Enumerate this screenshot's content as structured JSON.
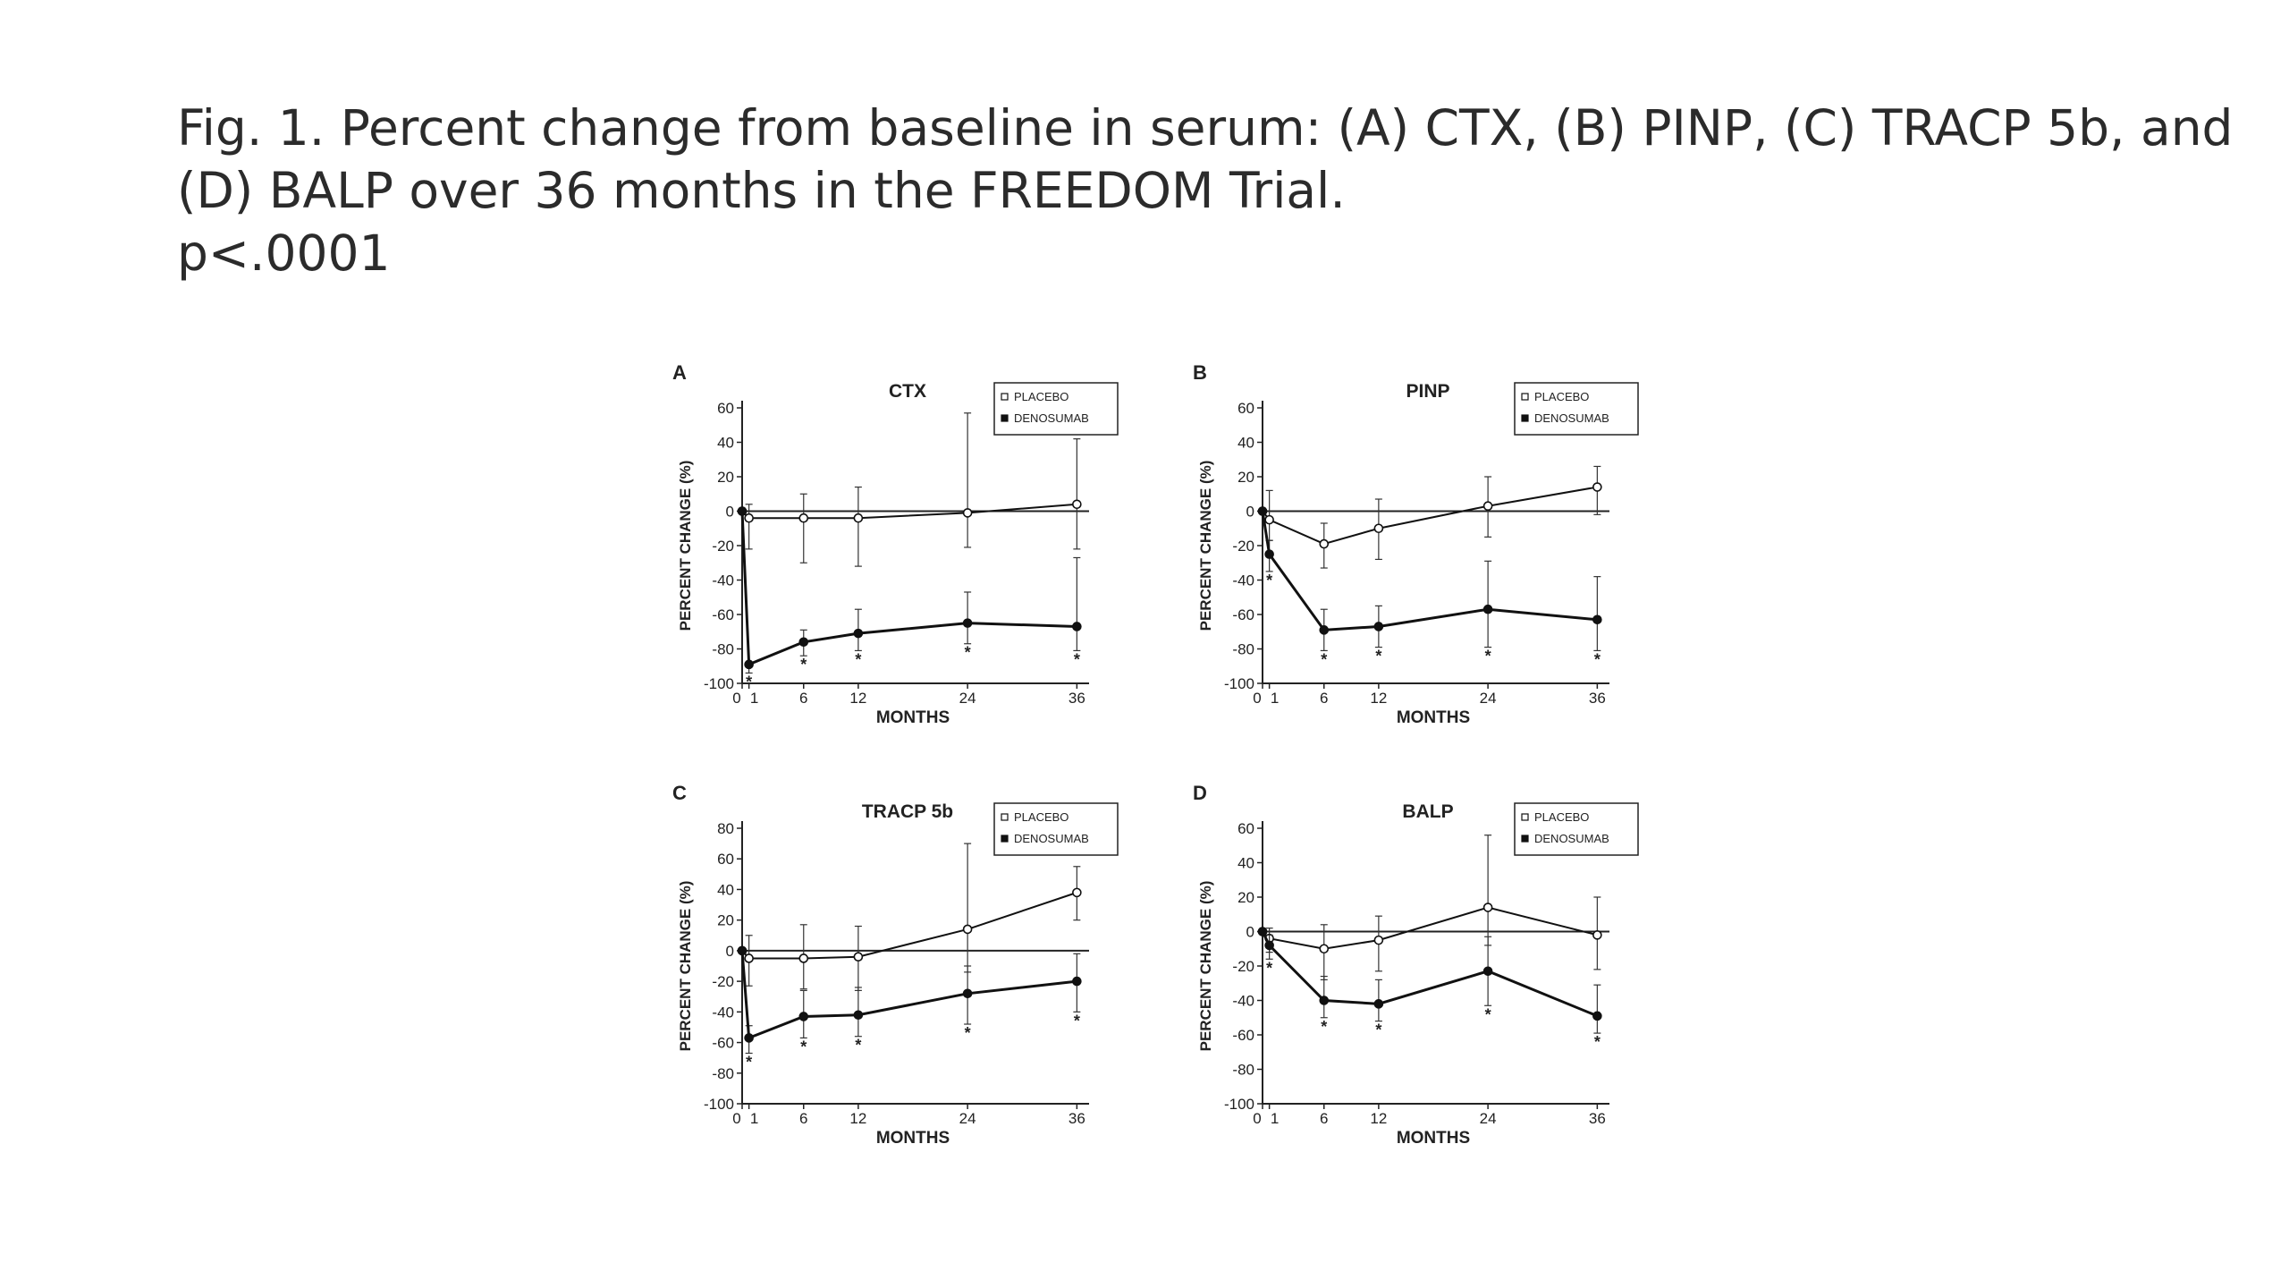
{
  "title": {
    "line1": "Fig. 1. Percent change from baseline in serum: (A) CTX, (B) PINP, (C) TRACP 5b, and",
    "line2": "(D) BALP over 36 months in the FREEDOM Trial.",
    "line3": "p<.0001"
  },
  "chart_data": [
    {
      "type": "line",
      "panel_letter": "A",
      "title": "CTX",
      "xlabel": "MONTHS",
      "ylabel": "PERCENT CHANGE (%)",
      "x_ticks": [
        "0",
        "1",
        "6",
        "12",
        "24",
        "36"
      ],
      "y_ticks": [
        60,
        40,
        20,
        0,
        -20,
        -40,
        -60,
        -80,
        -100
      ],
      "ylim": [
        -100,
        60
      ],
      "xlim": [
        0,
        36
      ],
      "legend": "top-right",
      "significance_marker": "*",
      "series": [
        {
          "name": "PLACEBO",
          "marker": "open-circle",
          "points": [
            {
              "x": 0,
              "y": 0
            },
            {
              "x": 1,
              "y": -4
            },
            {
              "x": 6,
              "y": -4
            },
            {
              "x": 12,
              "y": -4
            },
            {
              "x": 24,
              "y": -1
            },
            {
              "x": 36,
              "y": 4
            }
          ],
          "error_upper": [
            0,
            8,
            14,
            18,
            58,
            38
          ],
          "error_lower": [
            0,
            18,
            26,
            28,
            20,
            26
          ]
        },
        {
          "name": "DENOSUMAB",
          "marker": "filled-circle",
          "points": [
            {
              "x": 0,
              "y": 0
            },
            {
              "x": 1,
              "y": -89
            },
            {
              "x": 6,
              "y": -76
            },
            {
              "x": 12,
              "y": -71
            },
            {
              "x": 24,
              "y": -65
            },
            {
              "x": 36,
              "y": -67
            }
          ],
          "error_upper": [
            0,
            0,
            7,
            14,
            18,
            40
          ],
          "error_lower": [
            0,
            5,
            8,
            10,
            12,
            14
          ]
        }
      ],
      "significant_x": [
        1,
        6,
        12,
        24,
        36
      ]
    },
    {
      "type": "line",
      "panel_letter": "B",
      "title": "PINP",
      "xlabel": "MONTHS",
      "ylabel": "PERCENT CHANGE (%)",
      "x_ticks": [
        "0",
        "1",
        "6",
        "12",
        "24",
        "36"
      ],
      "y_ticks": [
        60,
        40,
        20,
        0,
        -20,
        -40,
        -60,
        -80,
        -100
      ],
      "ylim": [
        -100,
        60
      ],
      "xlim": [
        0,
        36
      ],
      "legend": "top-right",
      "significance_marker": "*",
      "series": [
        {
          "name": "PLACEBO",
          "marker": "open-circle",
          "points": [
            {
              "x": 0,
              "y": 0
            },
            {
              "x": 1,
              "y": -5
            },
            {
              "x": 6,
              "y": -19
            },
            {
              "x": 12,
              "y": -10
            },
            {
              "x": 24,
              "y": 3
            },
            {
              "x": 36,
              "y": 14
            }
          ],
          "error_upper": [
            0,
            17,
            12,
            17,
            17,
            12
          ],
          "error_lower": [
            0,
            12,
            14,
            18,
            18,
            16
          ]
        },
        {
          "name": "DENOSUMAB",
          "marker": "filled-circle",
          "points": [
            {
              "x": 0,
              "y": 0
            },
            {
              "x": 1,
              "y": -25
            },
            {
              "x": 6,
              "y": -69
            },
            {
              "x": 12,
              "y": -67
            },
            {
              "x": 24,
              "y": -57
            },
            {
              "x": 36,
              "y": -63
            }
          ],
          "error_upper": [
            0,
            8,
            12,
            12,
            28,
            25
          ],
          "error_lower": [
            0,
            10,
            12,
            12,
            22,
            18
          ]
        }
      ],
      "significant_x": [
        1,
        6,
        12,
        24,
        36
      ]
    },
    {
      "type": "line",
      "panel_letter": "C",
      "title": "TRACP 5b",
      "xlabel": "MONTHS",
      "ylabel": "PERCENT CHANGE (%)",
      "x_ticks": [
        "0",
        "1",
        "6",
        "12",
        "24",
        "36"
      ],
      "y_ticks": [
        80,
        60,
        40,
        20,
        0,
        -20,
        -40,
        -60,
        -80,
        -100
      ],
      "ylim": [
        -100,
        80
      ],
      "xlim": [
        0,
        36
      ],
      "legend": "top-right",
      "significance_marker": "*",
      "series": [
        {
          "name": "PLACEBO",
          "marker": "open-circle",
          "points": [
            {
              "x": 0,
              "y": 0
            },
            {
              "x": 1,
              "y": -5
            },
            {
              "x": 6,
              "y": -5
            },
            {
              "x": 12,
              "y": -4
            },
            {
              "x": 24,
              "y": 14
            },
            {
              "x": 36,
              "y": 38
            }
          ],
          "error_upper": [
            0,
            15,
            22,
            20,
            56,
            17
          ],
          "error_lower": [
            0,
            18,
            20,
            22,
            28,
            18
          ]
        },
        {
          "name": "DENOSUMAB",
          "marker": "filled-circle",
          "points": [
            {
              "x": 0,
              "y": 0
            },
            {
              "x": 1,
              "y": -57
            },
            {
              "x": 6,
              "y": -43
            },
            {
              "x": 12,
              "y": -42
            },
            {
              "x": 24,
              "y": -28
            },
            {
              "x": 36,
              "y": -20
            }
          ],
          "error_upper": [
            0,
            8,
            17,
            18,
            18,
            18
          ],
          "error_lower": [
            0,
            10,
            14,
            14,
            20,
            20
          ]
        }
      ],
      "significant_x": [
        1,
        6,
        12,
        24,
        36
      ]
    },
    {
      "type": "line",
      "panel_letter": "D",
      "title": "BALP",
      "xlabel": "MONTHS",
      "ylabel": "PERCENT CHANGE (%)",
      "x_ticks": [
        "0",
        "1",
        "6",
        "12",
        "24",
        "36"
      ],
      "y_ticks": [
        60,
        40,
        20,
        0,
        -20,
        -40,
        -60,
        -80,
        -100
      ],
      "ylim": [
        -100,
        60
      ],
      "xlim": [
        0,
        36
      ],
      "legend": "top-right",
      "significance_marker": "*",
      "series": [
        {
          "name": "PLACEBO",
          "marker": "open-circle",
          "points": [
            {
              "x": 0,
              "y": 0
            },
            {
              "x": 1,
              "y": -4
            },
            {
              "x": 6,
              "y": -10
            },
            {
              "x": 12,
              "y": -5
            },
            {
              "x": 24,
              "y": 14
            },
            {
              "x": 36,
              "y": -2
            }
          ],
          "error_upper": [
            0,
            6,
            14,
            14,
            42,
            22
          ],
          "error_lower": [
            0,
            8,
            18,
            18,
            22,
            20
          ]
        },
        {
          "name": "DENOSUMAB",
          "marker": "filled-circle",
          "points": [
            {
              "x": 0,
              "y": 0
            },
            {
              "x": 1,
              "y": -8
            },
            {
              "x": 6,
              "y": -40
            },
            {
              "x": 12,
              "y": -42
            },
            {
              "x": 24,
              "y": -23
            },
            {
              "x": 36,
              "y": -49
            }
          ],
          "error_upper": [
            0,
            6,
            14,
            14,
            20,
            18
          ],
          "error_lower": [
            0,
            8,
            10,
            10,
            20,
            10
          ]
        }
      ],
      "significant_x": [
        1,
        6,
        12,
        24,
        36
      ]
    }
  ]
}
